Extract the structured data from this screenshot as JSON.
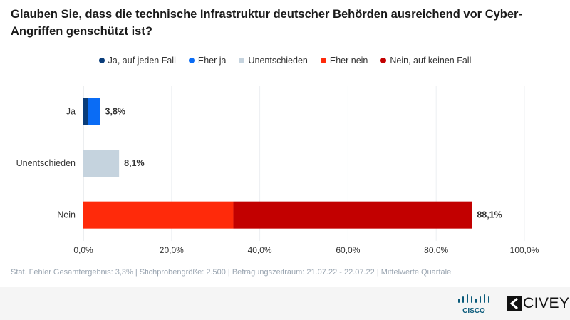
{
  "title": "Glauben Sie, dass die technische Infrastruktur deutscher Behörden ausreichend vor Cyber-Angriffen genschützt ist?",
  "chart_data": {
    "type": "bar",
    "orientation": "horizontal",
    "stacked": true,
    "title": "Glauben Sie, dass die technische Infrastruktur deutscher Behörden ausreichend vor Cyber-Angriffen genschützt ist?",
    "categories": [
      "Ja",
      "Unentschieden",
      "Nein"
    ],
    "series": [
      {
        "name": "Ja, auf jeden Fall",
        "color": "#0a3d7a",
        "values": [
          1.0,
          0,
          0
        ]
      },
      {
        "name": "Eher ja",
        "color": "#0a6cf5",
        "values": [
          2.8,
          0,
          0
        ]
      },
      {
        "name": "Unentschieden",
        "color": "#c5d3de",
        "values": [
          0,
          8.1,
          0
        ]
      },
      {
        "name": "Eher nein",
        "color": "#ff2a0a",
        "values": [
          0,
          0,
          34.0
        ]
      },
      {
        "name": "Nein, auf keinen Fall",
        "color": "#c20000",
        "values": [
          0,
          0,
          54.1
        ]
      }
    ],
    "totals": [
      "3,8%",
      "8,1%",
      "88,1%"
    ],
    "xlim": [
      0,
      100
    ],
    "xticks": [
      "0,0%",
      "20,0%",
      "40,0%",
      "60,0%",
      "80,0%",
      "100,0%"
    ],
    "grid": true,
    "legend": "top"
  },
  "note": "Stat. Fehler Gesamtergebnis: 3,3% | Stichprobengröße: 2.500 | Befragungszeitraum: 21.07.22 - 22.07.22 | Mittelwerte Quartale",
  "logos": {
    "cisco": "CISCO",
    "civey": "CIVEY"
  }
}
